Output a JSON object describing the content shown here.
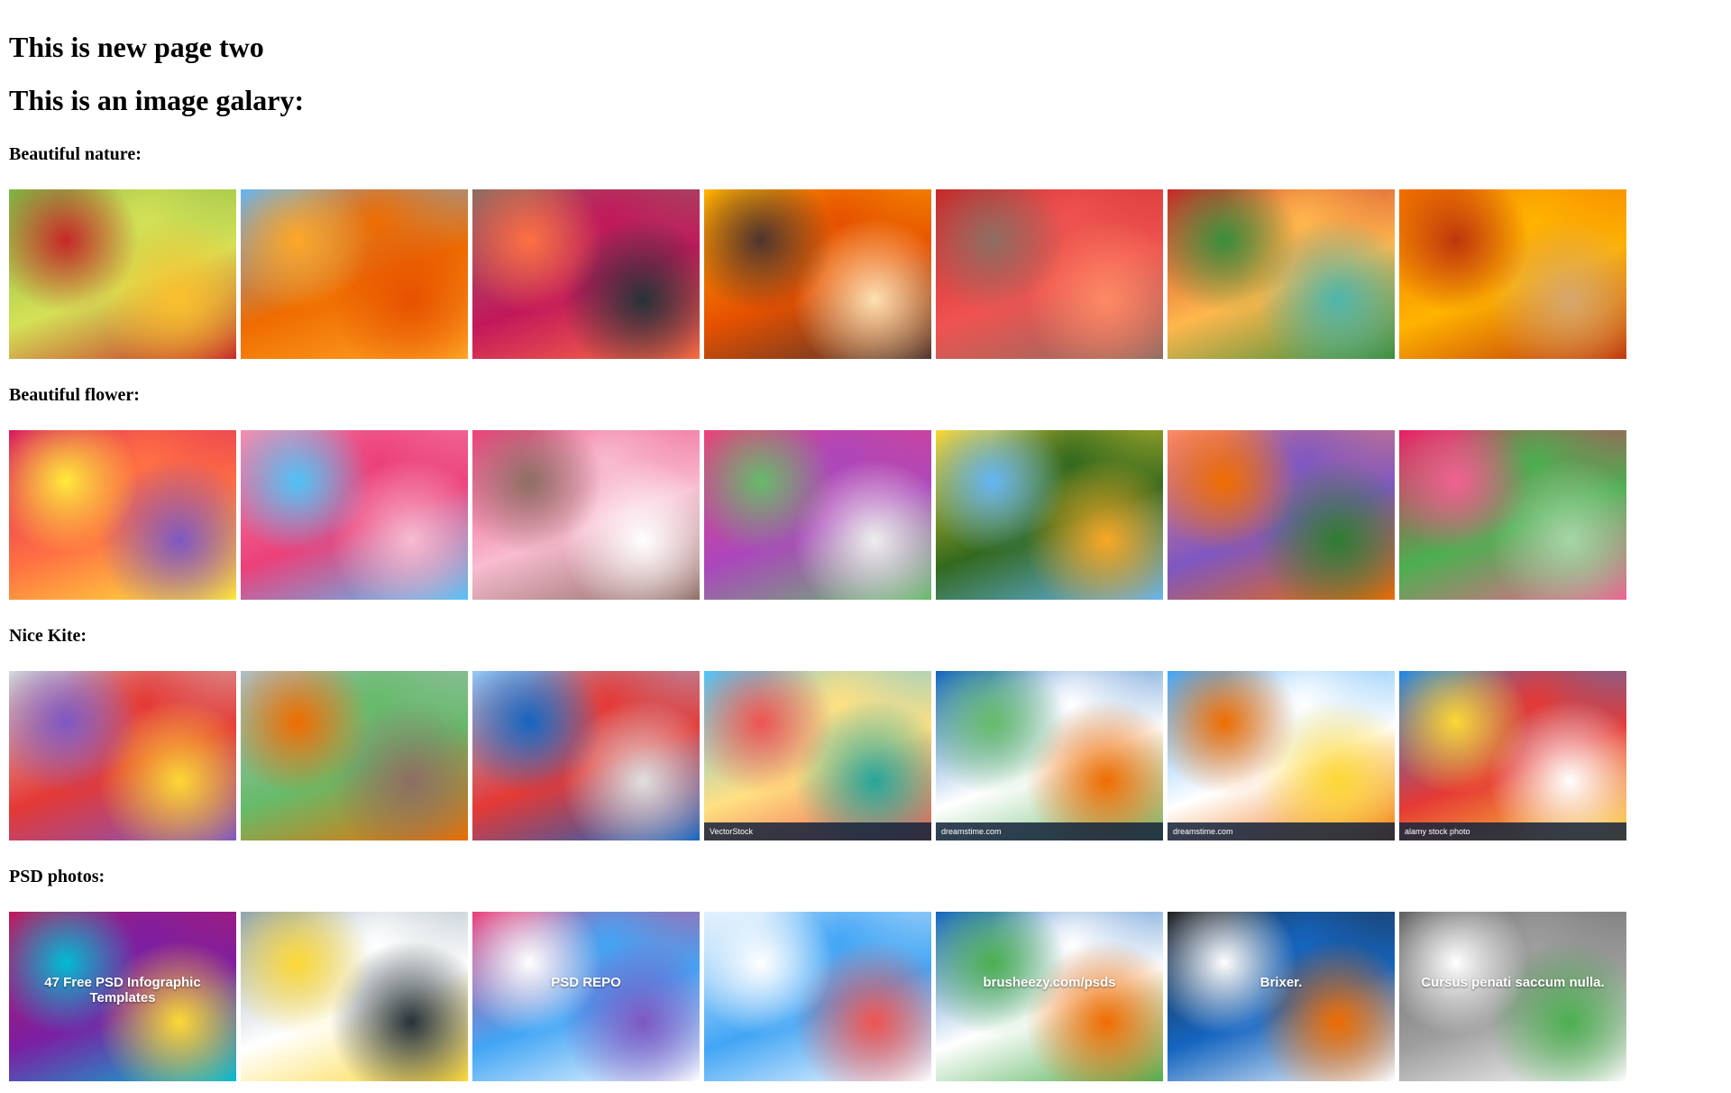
{
  "headings": {
    "title": "This is new page two",
    "gallery": "This is an image galary:"
  },
  "sections": [
    {
      "label": "Beautiful nature:",
      "images": [
        {
          "icon": "park-fountain-image",
          "colors": [
            "#7cb342",
            "#d4e157",
            "#c62828",
            "#fbc02d"
          ]
        },
        {
          "icon": "autumn-leaves-sky-image",
          "colors": [
            "#64b5f6",
            "#ef6c00",
            "#ffa726",
            "#e65100"
          ]
        },
        {
          "icon": "lake-swans-image",
          "colors": [
            "#8d6e63",
            "#c2185b",
            "#ff7043",
            "#263238"
          ]
        },
        {
          "icon": "autumn-river-trees-image",
          "colors": [
            "#ffb300",
            "#e65100",
            "#4e342e",
            "#ffe0b2"
          ]
        },
        {
          "icon": "red-maple-park-image",
          "colors": [
            "#c62828",
            "#ef5350",
            "#8d6e63",
            "#ff8a65"
          ]
        },
        {
          "icon": "river-boat-autumn-image",
          "colors": [
            "#c62828",
            "#ffb74d",
            "#388e3c",
            "#4db6ac"
          ]
        },
        {
          "icon": "golden-forest-road-image",
          "colors": [
            "#ef6c00",
            "#ffb300",
            "#bf360c",
            "#d7a86e"
          ]
        }
      ]
    },
    {
      "label": "Beautiful flower:",
      "images": [
        {
          "icon": "mixed-flowers-image",
          "colors": [
            "#d81b60",
            "#ff7043",
            "#ffeb3b",
            "#7e57c2"
          ]
        },
        {
          "icon": "pink-blossoms-image",
          "colors": [
            "#f48fb1",
            "#ec407a",
            "#4fc3f7",
            "#f8bbd0"
          ]
        },
        {
          "icon": "pink-rose-image",
          "colors": [
            "#ec407a",
            "#f8bbd0",
            "#8d6e63",
            "#ffffff"
          ]
        },
        {
          "icon": "painted-flowers-image",
          "colors": [
            "#ec407a",
            "#ab47bc",
            "#66bb6a",
            "#eeeeee"
          ]
        },
        {
          "icon": "sunflower-field-image",
          "colors": [
            "#fdd835",
            "#33691e",
            "#64b5f6",
            "#f9a825"
          ]
        },
        {
          "icon": "rose-bouquet-image",
          "colors": [
            "#ff8a65",
            "#7e57c2",
            "#ef6c00",
            "#2e7d32"
          ]
        },
        {
          "icon": "cosmos-flowers-image",
          "colors": [
            "#e91e63",
            "#4caf50",
            "#f06292",
            "#a5d6a7"
          ]
        }
      ]
    },
    {
      "label": "Nice Kite:",
      "images": [
        {
          "icon": "rainbow-kite-sky-image",
          "colors": [
            "#cfd8dc",
            "#e53935",
            "#7e57c2",
            "#fdd835"
          ],
          "watermark": ""
        },
        {
          "icon": "kite-festival-people-image",
          "colors": [
            "#b0bec5",
            "#66bb6a",
            "#ef6c00",
            "#8d6e63"
          ],
          "watermark": ""
        },
        {
          "icon": "kitesurf-beach-image",
          "colors": [
            "#90caf9",
            "#e53935",
            "#1565c0",
            "#e0e0e0"
          ],
          "watermark": ""
        },
        {
          "icon": "beach-kites-illustration-image",
          "colors": [
            "#4fc3f7",
            "#ffe082",
            "#ef5350",
            "#26a69a"
          ],
          "watermark": "VectorStock"
        },
        {
          "icon": "animal-kites-beach-image",
          "colors": [
            "#1565c0",
            "#ffffff",
            "#66bb6a",
            "#ef6c00"
          ],
          "watermark": "dreamstime.com"
        },
        {
          "icon": "fish-kites-sky-image",
          "colors": [
            "#42a5f5",
            "#ffffff",
            "#ef6c00",
            "#fdd835"
          ],
          "watermark": "dreamstime.com"
        },
        {
          "icon": "dragon-kite-sky-image",
          "colors": [
            "#1e88e5",
            "#e53935",
            "#fdd835",
            "#ffffff"
          ],
          "watermark": "alamy stock photo"
        }
      ]
    },
    {
      "label": "PSD photos:",
      "images": [
        {
          "icon": "psd-infographic-templates-image",
          "colors": [
            "#c2185b",
            "#7b1fa2",
            "#00bcd4",
            "#fdd835"
          ],
          "text": "47 Free PSD Infographic Templates"
        },
        {
          "icon": "website-mockup-image",
          "colors": [
            "#90a4ae",
            "#ffffff",
            "#fdd835",
            "#263238"
          ],
          "text": ""
        },
        {
          "icon": "psd-repo-collage-image",
          "colors": [
            "#ec407a",
            "#42a5f5",
            "#ffffff",
            "#7e57c2"
          ],
          "text": "PSD REPO"
        },
        {
          "icon": "digital-agency-template-image",
          "colors": [
            "#e3f2fd",
            "#42a5f5",
            "#ffffff",
            "#ef5350"
          ],
          "text": ""
        },
        {
          "icon": "brusheezy-psds-image",
          "colors": [
            "#1565c0",
            "#ffffff",
            "#4caf50",
            "#ef6c00"
          ],
          "text": "brusheezy.com/psds"
        },
        {
          "icon": "brixer-template-image",
          "colors": [
            "#212121",
            "#1565c0",
            "#ffffff",
            "#ef6c00"
          ],
          "text": "Brixer."
        },
        {
          "icon": "moderniste-template-image",
          "colors": [
            "#616161",
            "#9e9e9e",
            "#ffffff",
            "#4caf50"
          ],
          "text": "Cursus penati saccum nulla."
        }
      ]
    }
  ]
}
